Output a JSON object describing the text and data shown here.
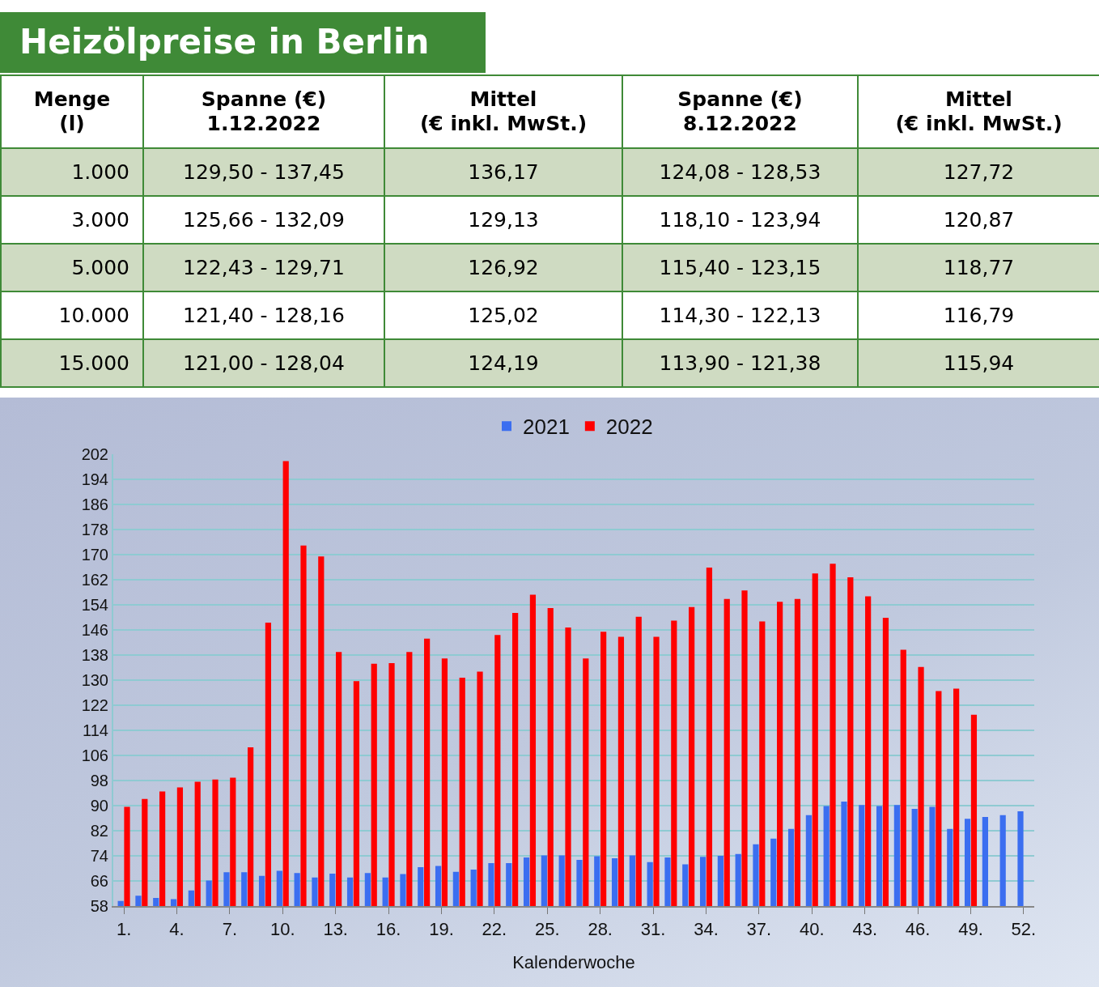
{
  "chart_data": [
    {
      "type": "other",
      "title": "Heizölpreise in Berlin",
      "categories": [
        "Menge\n(l)",
        "Spanne (€)\n1.12.2022",
        "Mittel\n(€ inkl. MwSt.)",
        "Spanne (€)\n8.12.2022",
        "Mittel\n(€ inkl. MwSt.)"
      ],
      "cell_labels": [
        [
          "1.000",
          "129,50 - 137,45",
          "136,17",
          "124,08 - 128,53",
          "127,72"
        ],
        [
          "3.000",
          "125,66 - 132,09",
          "129,13",
          "118,10 - 123,94",
          "120,87"
        ],
        [
          "5.000",
          "122,43 - 129,71",
          "126,92",
          "115,40 - 123,15",
          "118,77"
        ],
        [
          "10.000",
          "121,40 - 128,16",
          "125,02",
          "114,30 - 122,13",
          "116,79"
        ],
        [
          "15.000",
          "121,00 - 128,04",
          "124,19",
          "113,90 - 121,38",
          "115,94"
        ]
      ]
    },
    {
      "type": "bar",
      "xlabel": "Kalenderwoche",
      "categories": [
        "1.",
        null,
        null,
        "4.",
        null,
        null,
        "7.",
        null,
        null,
        "10.",
        null,
        null,
        "13.",
        null,
        null,
        "16.",
        null,
        null,
        "19.",
        null,
        null,
        "22.",
        null,
        null,
        "25.",
        null,
        null,
        "28.",
        null,
        null,
        "31.",
        null,
        null,
        "34.",
        null,
        null,
        "37.",
        null,
        null,
        "40.",
        null,
        null,
        "43.",
        null,
        null,
        "46.",
        null,
        null,
        "49.",
        null,
        null,
        "52."
      ],
      "series": [
        {
          "name": "2021",
          "color": "#3b6ef0",
          "values": [
            59.6,
            61.3,
            60.6,
            60.2,
            63.0,
            66.1,
            68.8,
            68.8,
            67.6,
            69.2,
            68.5,
            67.1,
            68.3,
            67.1,
            68.5,
            67.1,
            68.2,
            70.4,
            70.8,
            68.9,
            69.6,
            71.7,
            71.7,
            73.5,
            74.1,
            74.1,
            72.7,
            73.9,
            73.2,
            74.1,
            72.0,
            73.5,
            71.3,
            73.7,
            74.0,
            74.6,
            77.7,
            79.5,
            82.6,
            87.0,
            89.9,
            91.3,
            90.2,
            89.9,
            90.2,
            89.0,
            89.6,
            82.6,
            85.8,
            86.4,
            87.0,
            88.2
          ]
        },
        {
          "name": "2022",
          "color": "#ff0000",
          "values": [
            89.6,
            92.1,
            94.5,
            95.8,
            97.6,
            98.3,
            98.9,
            108.6,
            148.3,
            199.8,
            172.9,
            169.4,
            139.0,
            129.7,
            135.2,
            135.4,
            139.0,
            143.2,
            136.9,
            130.8,
            132.7,
            144.4,
            151.4,
            157.2,
            153.0,
            146.8,
            136.9,
            145.4,
            143.8,
            150.2,
            143.8,
            149.0,
            153.3,
            165.9,
            155.9,
            158.6,
            148.7,
            155.0,
            155.9,
            164.0,
            167.1,
            162.8,
            156.7,
            149.9,
            139.7,
            134.2,
            126.5,
            127.3,
            119.0,
            null,
            null,
            null
          ]
        }
      ],
      "ylim": [
        58,
        202
      ],
      "yticks": [
        58,
        66,
        74,
        82,
        90,
        98,
        106,
        114,
        122,
        130,
        138,
        146,
        154,
        162,
        170,
        178,
        186,
        194,
        202
      ],
      "grid": "y",
      "legend": "top"
    }
  ]
}
